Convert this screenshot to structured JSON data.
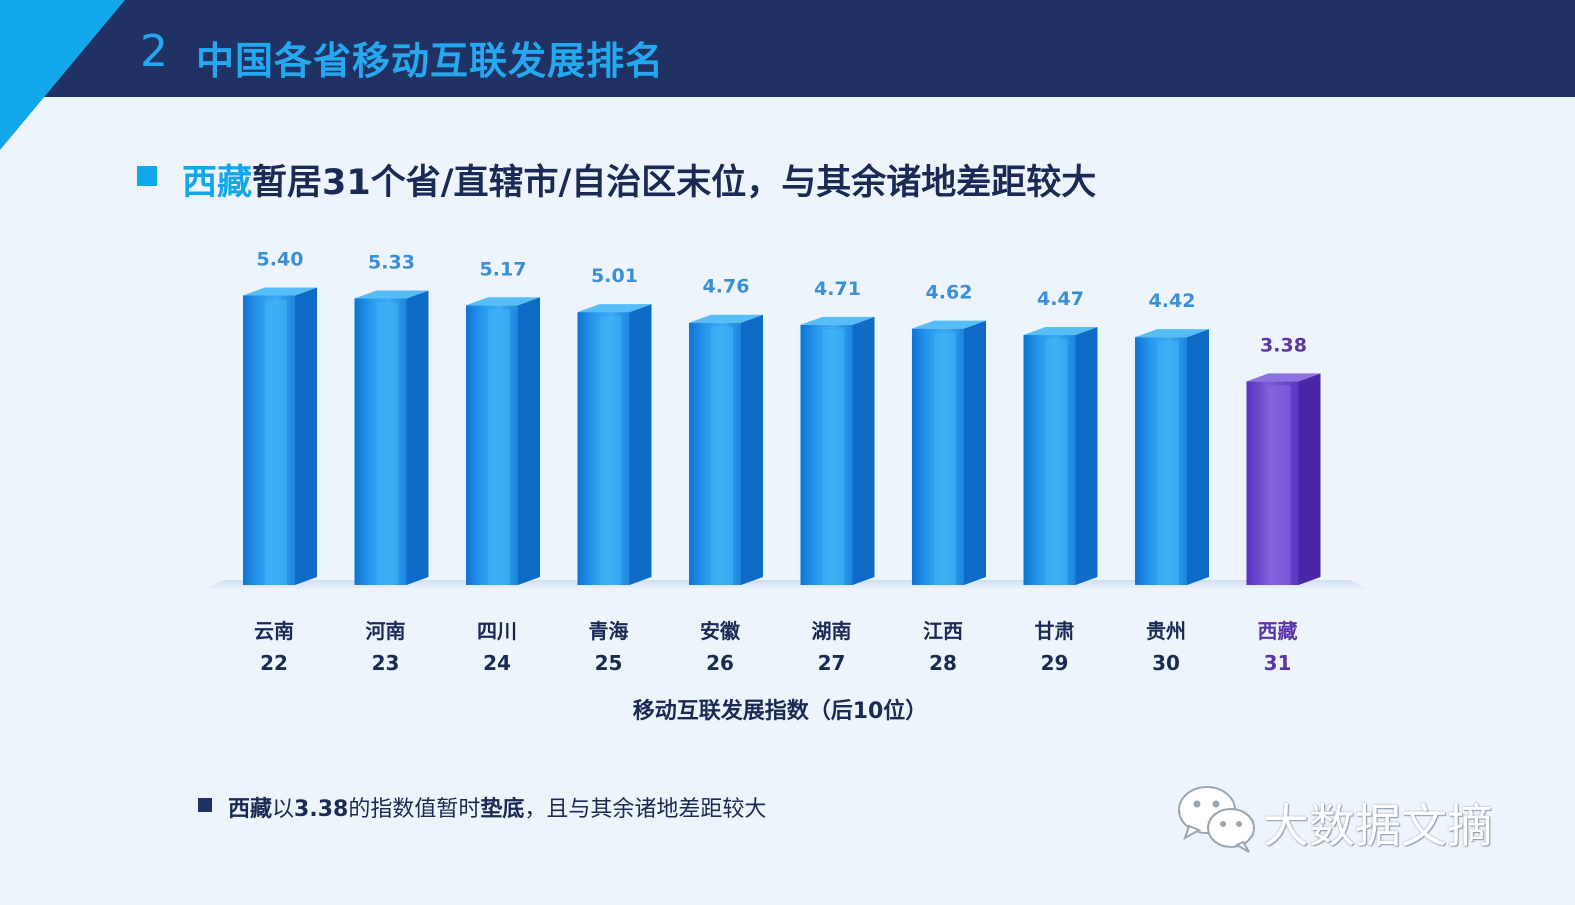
{
  "header": {
    "section_number": "2",
    "title": "中国各省移动互联发展排名"
  },
  "headline": {
    "highlight": "西藏",
    "rest": "暂居31个省/直辖市/自治区末位，与其余诸地差距较大"
  },
  "chart_data": {
    "type": "bar",
    "categories": [
      "云南",
      "河南",
      "四川",
      "青海",
      "安徽",
      "湖南",
      "江西",
      "甘肃",
      "贵州",
      "西藏"
    ],
    "ranks": [
      "22",
      "23",
      "24",
      "25",
      "26",
      "27",
      "28",
      "29",
      "30",
      "31"
    ],
    "values": [
      5.4,
      5.33,
      5.17,
      5.01,
      4.76,
      4.71,
      4.62,
      4.47,
      4.42,
      3.38
    ],
    "value_labels": [
      "5.40",
      "5.33",
      "5.17",
      "5.01",
      "4.76",
      "4.71",
      "4.62",
      "4.47",
      "4.42",
      "3.38"
    ],
    "xlabel": "移动互联发展指数（后10位）",
    "ylabel": "",
    "highlight_index": 9,
    "colors": {
      "bar": "#1e8fe3",
      "highlight": "#6a3fc6",
      "label": "#3a8fd6",
      "highlight_label": "#5b34a8"
    }
  },
  "footnote": {
    "bold1": "西藏",
    "text1": "以",
    "bold2": "3.38",
    "text2": "的指数值暂时",
    "bold3": "垫底",
    "text3": "，且与其余诸地差距较大"
  },
  "watermark": {
    "text": "大数据文摘",
    "icon": "wechat-icon"
  }
}
